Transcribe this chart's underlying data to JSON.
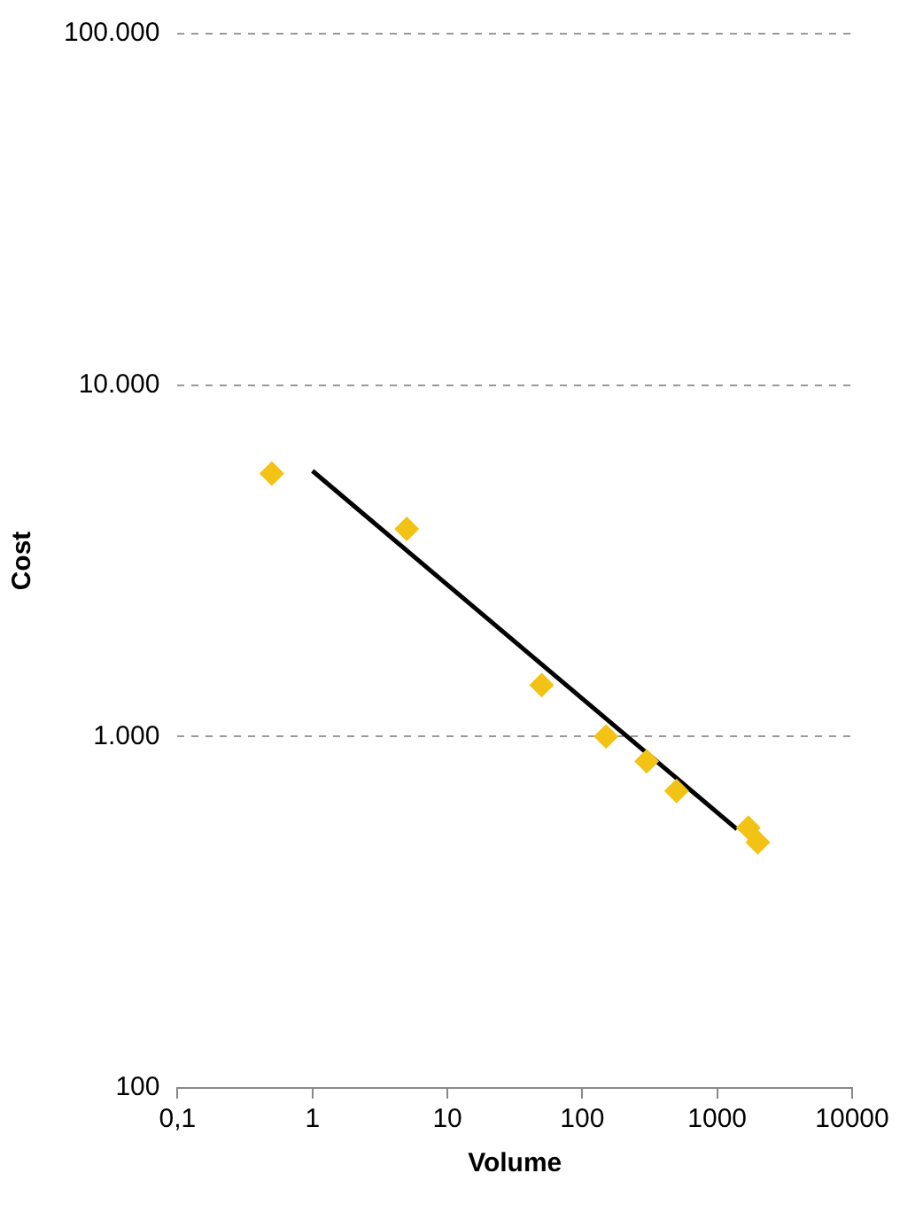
{
  "chart_data": {
    "type": "scatter",
    "xlabel": "Volume",
    "ylabel": "Cost",
    "log": "xy",
    "grid": "y",
    "legend": false,
    "marker": "diamond",
    "xlim": [
      0.1,
      10000
    ],
    "xticks": [
      {
        "value": 0.1,
        "label": "0,1"
      },
      1,
      10,
      100,
      1000,
      10000
    ],
    "ylim": [
      100,
      100000
    ],
    "yticks": [
      100,
      {
        "value": 1000,
        "label": "1.000"
      },
      {
        "value": 10000,
        "label": "10.000"
      },
      {
        "value": 100000,
        "label": "100.000"
      }
    ],
    "series": [
      {
        "color": "#f2c314",
        "x": [
          0.5,
          5,
          50,
          150,
          300,
          500,
          1700,
          2000
        ],
        "values": [
          5600,
          3900,
          1400,
          1000,
          850,
          700,
          550,
          500
        ]
      },
      {
        "type": "line",
        "color": "#000000",
        "marker": "none",
        "line_style": "solid",
        "x": [
          1,
          1400
        ],
        "values": [
          5700,
          545
        ]
      }
    ]
  }
}
